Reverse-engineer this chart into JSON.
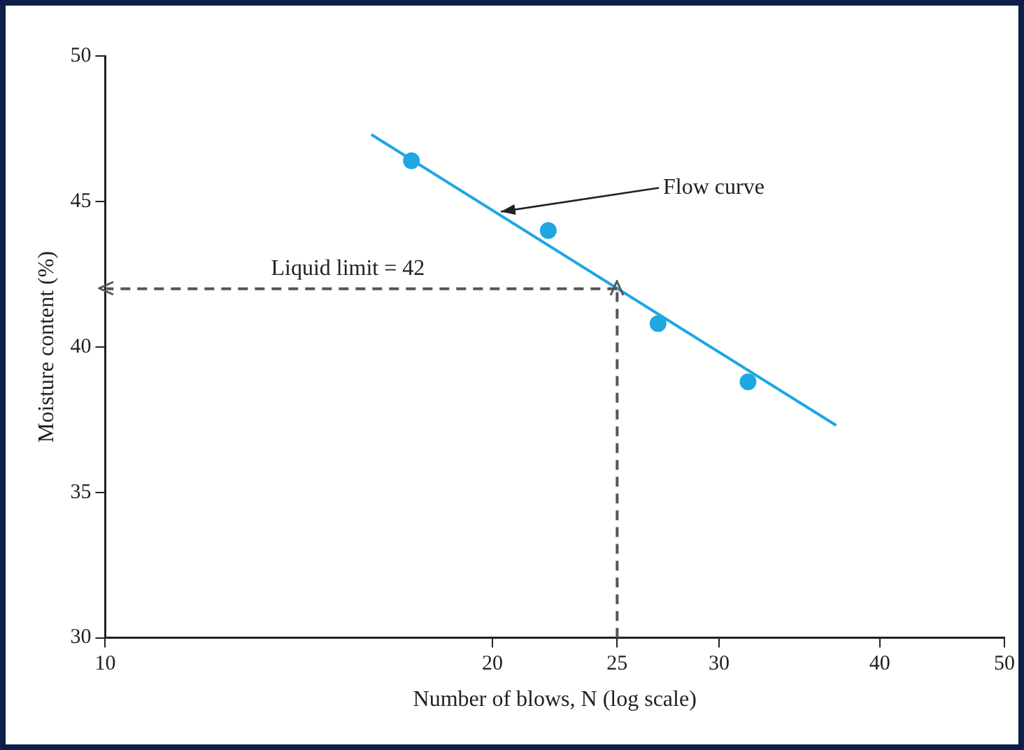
{
  "chart_data": {
    "type": "scatter",
    "xlabel": "Number of blows, N (log scale)",
    "ylabel": "Moisture content (%)",
    "log": "x",
    "grid": false,
    "legend": false,
    "marker": "circle",
    "xlim": [
      10,
      50
    ],
    "xticks": [
      10,
      20,
      25,
      30,
      40,
      50
    ],
    "ylim": [
      30,
      50
    ],
    "yticks": [
      30,
      35,
      40,
      45,
      50
    ],
    "series": [
      {
        "color": "#1ea7e1",
        "x": [
          17.3,
          22.1,
          26.9,
          31.6
        ],
        "values": [
          46.4,
          44.0,
          40.8,
          38.8
        ]
      },
      {
        "type": "line",
        "color": "#1ea7e1",
        "marker": "none",
        "x": [
          16.1,
          37.0
        ],
        "values": [
          47.3,
          37.3
        ]
      }
    ],
    "ref_lines": [
      {
        "axis": "y",
        "value": 42,
        "label": "Liquid limit = 42",
        "color": "#555555",
        "line_style": "dashed"
      },
      {
        "axis": "x",
        "value": 25,
        "color": "#555555",
        "line_style": "dashed"
      }
    ],
    "annotations": [
      {
        "text": "Flow curve",
        "x": 20.2,
        "y": 44.6
      }
    ]
  }
}
